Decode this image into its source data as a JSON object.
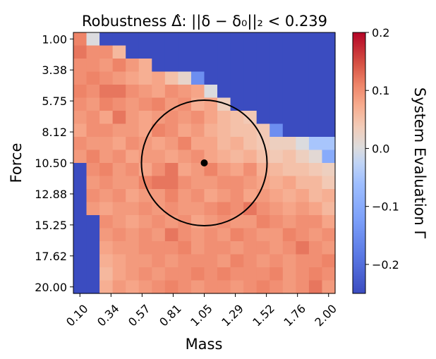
{
  "chart_data": {
    "type": "heatmap",
    "title": "Robustness Δ̂: ||δ − δ₀||₂ < 0.239",
    "xlabel": "Mass",
    "ylabel": "Force",
    "x_tick_labels": [
      "0.10",
      "0.34",
      "0.57",
      "0.81",
      "1.05",
      "1.29",
      "1.52",
      "1.76",
      "2.00"
    ],
    "y_tick_labels": [
      "1.00",
      "3.38",
      "5.75",
      "8.12",
      "10.50",
      "12.88",
      "15.25",
      "17.62",
      "20.00"
    ],
    "x_range": [
      0.1,
      2.0
    ],
    "y_range": [
      1.0,
      20.0
    ],
    "grid_size": 20,
    "colorbar": {
      "label": "System Evaluation Γ",
      "ticks": [
        "−0.2",
        "−0.1",
        "0.0",
        "0.1",
        "0.2"
      ],
      "range": [
        -0.25,
        0.2
      ],
      "colormap": "coolwarm"
    },
    "reference_point": {
      "mass": 1.05,
      "force": 10.5
    },
    "robustness_radius": 0.239,
    "note_values": "Gamma values estimated from the colour of each cell: blue region about -0.25, red region about 0.05 to 0.14",
    "values": [
      [
        0.11,
        0.0,
        -0.25,
        -0.25,
        -0.25,
        -0.25,
        -0.25,
        -0.25,
        -0.25,
        -0.25,
        -0.25,
        -0.25,
        -0.25,
        -0.25,
        -0.25,
        -0.25,
        -0.25,
        -0.25,
        -0.25,
        -0.25
      ],
      [
        0.12,
        0.1,
        0.1,
        0.06,
        -0.25,
        -0.25,
        -0.25,
        -0.25,
        -0.25,
        -0.25,
        -0.25,
        -0.25,
        -0.25,
        -0.25,
        -0.25,
        -0.25,
        -0.25,
        -0.25,
        -0.25,
        -0.25
      ],
      [
        0.1,
        0.1,
        0.09,
        0.11,
        0.09,
        0.07,
        -0.25,
        -0.25,
        -0.25,
        -0.25,
        -0.25,
        -0.25,
        -0.25,
        -0.25,
        -0.25,
        -0.25,
        -0.25,
        -0.25,
        -0.25,
        -0.25
      ],
      [
        0.1,
        0.11,
        0.1,
        0.09,
        0.08,
        0.07,
        0.08,
        0.05,
        0.02,
        -0.15,
        -0.25,
        -0.25,
        -0.25,
        -0.25,
        -0.25,
        -0.25,
        -0.25,
        -0.25,
        -0.25,
        -0.25
      ],
      [
        0.11,
        0.1,
        0.12,
        0.12,
        0.1,
        0.09,
        0.08,
        0.1,
        0.09,
        0.08,
        0.0,
        -0.25,
        -0.25,
        -0.25,
        -0.25,
        -0.25,
        -0.25,
        -0.25,
        -0.25,
        -0.25
      ],
      [
        0.1,
        0.09,
        0.11,
        0.1,
        0.09,
        0.1,
        0.11,
        0.09,
        0.1,
        0.07,
        0.08,
        0.03,
        -0.25,
        -0.25,
        -0.25,
        -0.25,
        -0.25,
        -0.25,
        -0.25,
        -0.25
      ],
      [
        0.09,
        0.1,
        0.08,
        0.12,
        0.09,
        0.08,
        0.09,
        0.1,
        0.09,
        0.1,
        0.08,
        0.06,
        0.05,
        0.04,
        -0.25,
        -0.25,
        -0.25,
        -0.25,
        -0.25,
        -0.25
      ],
      [
        0.08,
        0.1,
        0.1,
        0.09,
        0.09,
        0.08,
        0.11,
        0.1,
        0.08,
        0.09,
        0.07,
        0.06,
        0.05,
        0.05,
        0.04,
        -0.15,
        -0.25,
        -0.25,
        -0.25,
        -0.25
      ],
      [
        0.1,
        0.09,
        0.09,
        0.08,
        0.1,
        0.09,
        0.08,
        0.09,
        0.11,
        0.08,
        0.08,
        0.06,
        0.07,
        0.05,
        0.04,
        0.03,
        0.03,
        0.0,
        -0.05,
        -0.05
      ],
      [
        0.09,
        0.11,
        0.09,
        0.1,
        0.08,
        0.09,
        0.09,
        0.08,
        0.09,
        0.1,
        0.08,
        0.07,
        0.06,
        0.07,
        0.05,
        0.04,
        0.05,
        0.03,
        0.01,
        -0.1
      ],
      [
        -0.25,
        0.1,
        0.11,
        0.09,
        0.1,
        0.08,
        0.1,
        0.12,
        0.08,
        0.09,
        0.11,
        0.09,
        0.08,
        0.1,
        0.07,
        0.06,
        0.05,
        0.05,
        0.04,
        0.03
      ],
      [
        -0.25,
        0.09,
        0.1,
        0.09,
        0.09,
        0.11,
        0.12,
        0.12,
        0.1,
        0.09,
        0.09,
        0.1,
        0.1,
        0.09,
        0.08,
        0.07,
        0.08,
        0.06,
        0.06,
        0.04
      ],
      [
        -0.25,
        0.1,
        0.09,
        0.1,
        0.08,
        0.09,
        0.09,
        0.11,
        0.09,
        0.1,
        0.08,
        0.09,
        0.1,
        0.08,
        0.09,
        0.08,
        0.07,
        0.08,
        0.06,
        0.07
      ],
      [
        -0.25,
        0.09,
        0.08,
        0.09,
        0.09,
        0.1,
        0.09,
        0.1,
        0.09,
        0.09,
        0.1,
        0.11,
        0.1,
        0.12,
        0.1,
        0.09,
        0.08,
        0.09,
        0.08,
        0.06
      ],
      [
        -0.25,
        -0.25,
        0.1,
        0.09,
        0.08,
        0.09,
        0.1,
        0.09,
        0.1,
        0.08,
        0.09,
        0.1,
        0.09,
        0.09,
        0.11,
        0.1,
        0.09,
        0.1,
        0.1,
        0.08
      ],
      [
        -0.25,
        -0.25,
        0.09,
        0.1,
        0.09,
        0.1,
        0.09,
        0.12,
        0.1,
        0.09,
        0.1,
        0.09,
        0.11,
        0.1,
        0.09,
        0.09,
        0.11,
        0.1,
        0.09,
        0.1
      ],
      [
        -0.25,
        -0.25,
        0.08,
        0.09,
        0.09,
        0.1,
        0.1,
        0.1,
        0.11,
        0.09,
        0.1,
        0.1,
        0.09,
        0.1,
        0.1,
        0.09,
        0.1,
        0.12,
        0.1,
        0.09
      ],
      [
        -0.25,
        -0.25,
        0.07,
        0.08,
        0.09,
        0.09,
        0.1,
        0.09,
        0.1,
        0.1,
        0.1,
        0.09,
        0.11,
        0.1,
        0.09,
        0.1,
        0.09,
        0.1,
        0.1,
        0.11
      ],
      [
        -0.25,
        -0.25,
        0.06,
        0.08,
        0.09,
        0.1,
        0.09,
        0.1,
        0.1,
        0.11,
        0.1,
        0.11,
        0.1,
        0.1,
        0.1,
        0.11,
        0.09,
        0.1,
        0.11,
        0.1
      ],
      [
        -0.25,
        -0.25,
        0.07,
        0.09,
        0.08,
        0.09,
        0.1,
        0.11,
        0.1,
        0.09,
        0.1,
        0.1,
        0.09,
        0.1,
        0.11,
        0.1,
        0.09,
        0.1,
        0.12,
        0.09
      ]
    ]
  }
}
